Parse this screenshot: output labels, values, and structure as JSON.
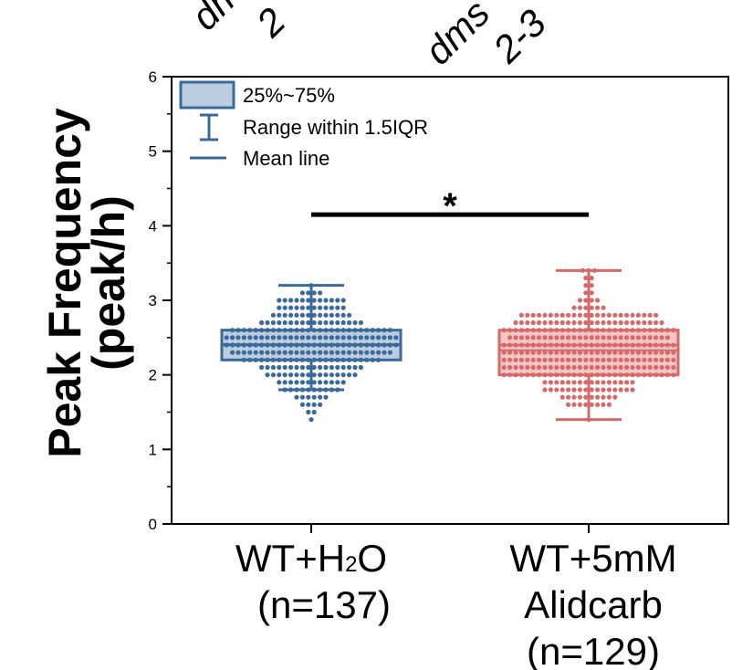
{
  "page": {
    "top_labels": [
      "dm",
      "2",
      "dms",
      "2-3"
    ]
  },
  "chart_data": {
    "type": "box",
    "ylabel_line1": "Peak Frequency",
    "ylabel_line2": "(peak/h)",
    "ylim": [
      0,
      6
    ],
    "yticks": [
      "0",
      "1",
      "2",
      "3",
      "4",
      "5",
      "6"
    ],
    "categories": [
      {
        "label_main": "WT+H",
        "label_sub": "2",
        "label_tail": "O",
        "label_line2": "(n=137)"
      },
      {
        "label_main": "WT+5mM",
        "label_line2": "Alidcarb",
        "label_line3": "(n=129)"
      }
    ],
    "series": [
      {
        "color_fill": "#bccde0",
        "color_stroke": "#3a6a9a",
        "q1": 2.2,
        "median": 2.4,
        "q3": 2.6,
        "mean": 2.41,
        "whisker_low": 1.8,
        "whisker_high": 3.2,
        "outliers": [
          1.4,
          1.6
        ],
        "dot_levels": [
          [
            1.4,
            1
          ],
          [
            1.5,
            2
          ],
          [
            1.6,
            4
          ],
          [
            1.7,
            6
          ],
          [
            1.8,
            10
          ],
          [
            1.9,
            12
          ],
          [
            2.0,
            16
          ],
          [
            2.1,
            18
          ],
          [
            2.2,
            24
          ],
          [
            2.3,
            28
          ],
          [
            2.4,
            30
          ],
          [
            2.5,
            30
          ],
          [
            2.6,
            28
          ],
          [
            2.7,
            18
          ],
          [
            2.8,
            14
          ],
          [
            2.9,
            12
          ],
          [
            3.0,
            12
          ],
          [
            3.1,
            4
          ],
          [
            3.2,
            1
          ]
        ]
      },
      {
        "color_fill": "#f4c6c6",
        "color_stroke": "#d66a6a",
        "q1": 2.0,
        "median": 2.4,
        "q3": 2.6,
        "mean": 2.33,
        "whisker_low": 1.4,
        "whisker_high": 3.4,
        "outliers": [],
        "dot_levels": [
          [
            1.4,
            1
          ],
          [
            1.6,
            8
          ],
          [
            1.7,
            10
          ],
          [
            1.8,
            16
          ],
          [
            1.9,
            16
          ],
          [
            2.0,
            30
          ],
          [
            2.1,
            30
          ],
          [
            2.2,
            30
          ],
          [
            2.3,
            30
          ],
          [
            2.4,
            30
          ],
          [
            2.5,
            28
          ],
          [
            2.6,
            30
          ],
          [
            2.7,
            26
          ],
          [
            2.8,
            24
          ],
          [
            2.9,
            6
          ],
          [
            3.0,
            4
          ],
          [
            3.1,
            2
          ],
          [
            3.2,
            2
          ],
          [
            3.3,
            2
          ],
          [
            3.4,
            3
          ]
        ]
      }
    ],
    "legend": {
      "position": "top-left",
      "items": [
        "25%~75%",
        "Range within 1.5IQR",
        "Mean line"
      ]
    },
    "significance": {
      "text": "*",
      "from": 0,
      "to": 1,
      "y": 4.15
    }
  }
}
